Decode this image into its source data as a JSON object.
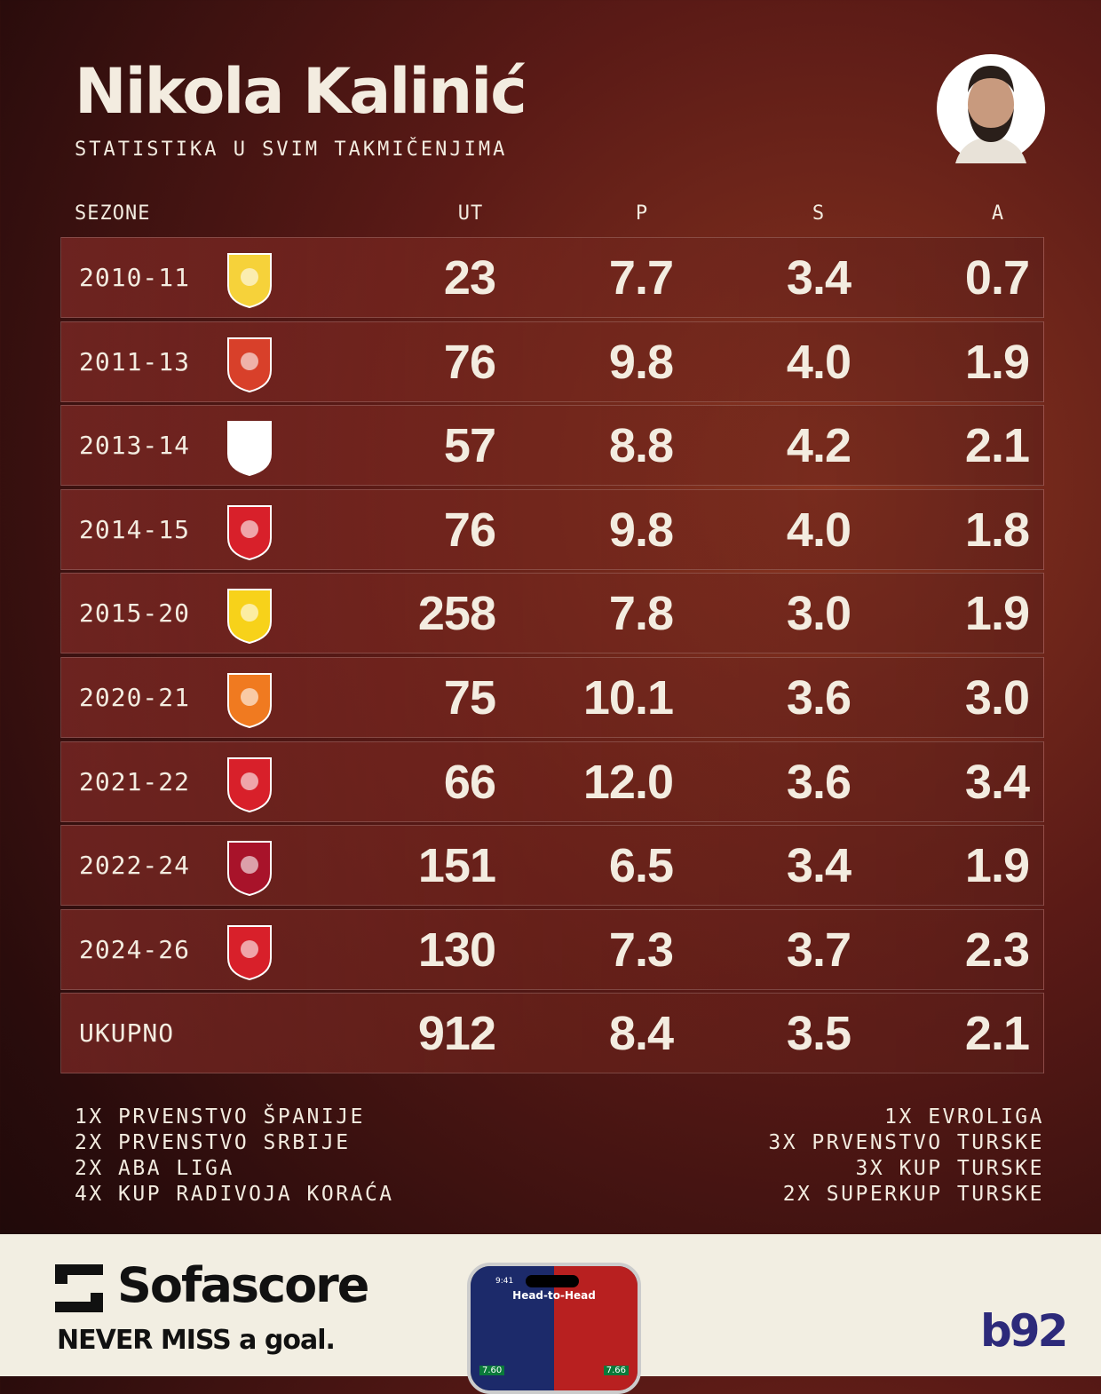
{
  "header": {
    "title": "Nikola Kalinić",
    "subtitle": "STATISTIKA U SVIM TAKMIČENJIMA"
  },
  "table": {
    "columns": [
      "SEZONE",
      "UT",
      "P",
      "S",
      "A"
    ],
    "rows": [
      [
        "2010-11",
        "23",
        "7.7",
        "3.4",
        "0.7"
      ],
      [
        "2011-13",
        "76",
        "9.8",
        "4.0",
        "1.9"
      ],
      [
        "2013-14",
        "57",
        "8.8",
        "4.2",
        "2.1"
      ],
      [
        "2014-15",
        "76",
        "9.8",
        "4.0",
        "1.8"
      ],
      [
        "2015-20",
        "258",
        "7.8",
        "3.0",
        "1.9"
      ],
      [
        "2020-21",
        "75",
        "10.1",
        "3.6",
        "3.0"
      ],
      [
        "2021-22",
        "66",
        "12.0",
        "3.6",
        "3.4"
      ],
      [
        "2022-24",
        "151",
        "6.5",
        "3.4",
        "1.9"
      ],
      [
        "2024-26",
        "130",
        "7.3",
        "3.7",
        "2.3"
      ]
    ],
    "total": [
      "UKUPNO",
      "912",
      "8.4",
      "3.5",
      "2.1"
    ]
  },
  "honors": {
    "left": [
      "1X PRVENSTVO ŠPANIJE",
      "2X PRVENSTVO SRBIJE",
      "2X ABA LIGA",
      "4X KUP RADIVOJA KORAĆA"
    ],
    "right": [
      "1X EVROLIGA",
      "3X PRVENSTVO TURSKE",
      "3X KUP TURSKE",
      "2X SUPERKUP TURSKE"
    ]
  },
  "footer": {
    "brand": "Sofascore",
    "tagline": "NEVER MISS a goal.",
    "phone_time": "9:41",
    "phone_title": "Head-to-Head",
    "phone_left": "7.60",
    "phone_right": "7.66",
    "partner": "b92"
  }
}
